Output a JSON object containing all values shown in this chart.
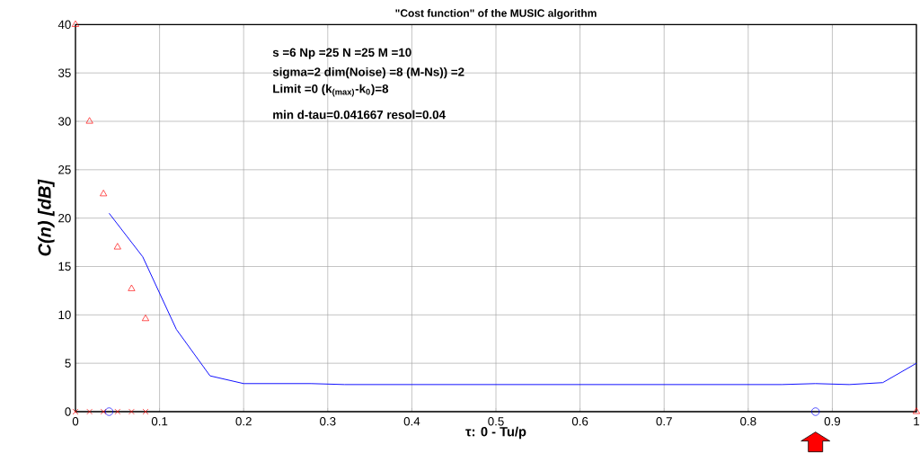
{
  "chart_data": {
    "type": "line",
    "title": "\"Cost function\" of the MUSIC algorithm",
    "xlabel": "τ: 0 - Tu/p",
    "ylabel": "C(n) [dB]",
    "annotations": [
      "s =6  Np =25 N =25  M =10",
      "sigma=2 dim(Noise) =8 (M-Ns)) =2",
      "Limit =0  (k$_{(max)}$-k$_{0}$)=8",
      "min d-tau=0.041667     resol=0.04"
    ],
    "xlim": [
      0,
      1
    ],
    "ylim": [
      0,
      40
    ],
    "xticks": [
      0,
      0.1,
      0.2,
      0.3,
      0.4,
      0.5,
      0.6,
      0.7,
      0.8,
      0.9,
      1
    ],
    "yticks": [
      0,
      5,
      10,
      15,
      20,
      25,
      30,
      35,
      40
    ],
    "grid": true,
    "series": [
      {
        "color": "#0000ff",
        "marker": "none",
        "x": [
          0.04,
          0.08,
          0.12,
          0.16,
          0.2,
          0.28,
          0.32,
          0.4,
          0.48,
          0.56,
          0.64,
          0.72,
          0.8,
          0.84,
          0.88,
          0.92,
          0.96,
          1.0
        ],
        "values": [
          20.5,
          16,
          8.5,
          3.7,
          2.9,
          2.9,
          2.8,
          2.8,
          2.8,
          2.8,
          2.8,
          2.8,
          2.8,
          2.8,
          2.9,
          2.8,
          3.0,
          5.0
        ]
      },
      {
        "type": "scatter",
        "color": "#ff0000",
        "marker": "triangle",
        "x": [
          0,
          0.0167,
          0.0333,
          0.05,
          0.0667,
          0.0833,
          1.0
        ],
        "values": [
          40,
          30,
          22.5,
          17,
          12.7,
          9.6,
          0
        ]
      },
      {
        "type": "scatter",
        "color": "#ff0000",
        "marker": "cross",
        "x": [
          0,
          0.0167,
          0.0333,
          0.05,
          0.0667,
          0.0833
        ],
        "values": [
          0,
          0,
          0,
          0,
          0,
          0
        ]
      },
      {
        "type": "scatter",
        "color": "#0000ff",
        "marker": "circle",
        "x": [
          0.04,
          0.88
        ],
        "values": [
          0,
          0
        ]
      }
    ]
  }
}
